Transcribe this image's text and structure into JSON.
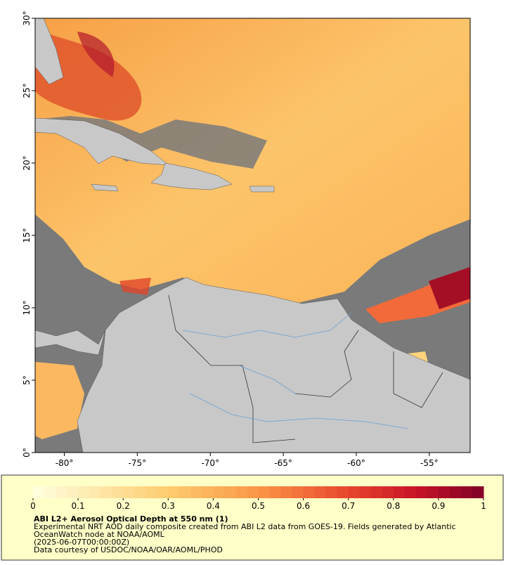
{
  "map": {
    "lat_range": [
      0,
      30
    ],
    "lon_range": [
      -82,
      -52.2
    ],
    "lat_ticks": [
      {
        "value": 30,
        "label": "30°"
      },
      {
        "value": 25,
        "label": "25°"
      },
      {
        "value": 20,
        "label": "20°"
      },
      {
        "value": 15,
        "label": "15°"
      },
      {
        "value": 10,
        "label": "10°"
      },
      {
        "value": 5,
        "label": "5°"
      },
      {
        "value": 0,
        "label": "0°"
      }
    ],
    "lon_ticks": [
      {
        "value": -80,
        "label": "-80°"
      },
      {
        "value": -75,
        "label": "-75°"
      },
      {
        "value": -70,
        "label": "-70°"
      },
      {
        "value": -65,
        "label": "-65°"
      },
      {
        "value": -60,
        "label": "-60°"
      },
      {
        "value": -55,
        "label": "-55°"
      }
    ]
  },
  "colorbar": {
    "range": [
      0,
      1
    ],
    "ticks": [
      0,
      0.1,
      0.2,
      0.3,
      0.4,
      0.5,
      0.6,
      0.7,
      0.8,
      0.9,
      1
    ]
  },
  "caption": {
    "title": "ABI L2+ Aerosol Optical Depth at 550 nm (1)",
    "lines": [
      "Experimental NRT AOD daily composite created from ABI L2 data from GOES-19. Fields generated by Atlantic",
      "OceanWatch node at NOAA/AOML",
      "(2025-06-07T00:00:00Z)",
      "Data courtesy of USDOC/NOAA/OAR/AOML/PHOD"
    ]
  }
}
